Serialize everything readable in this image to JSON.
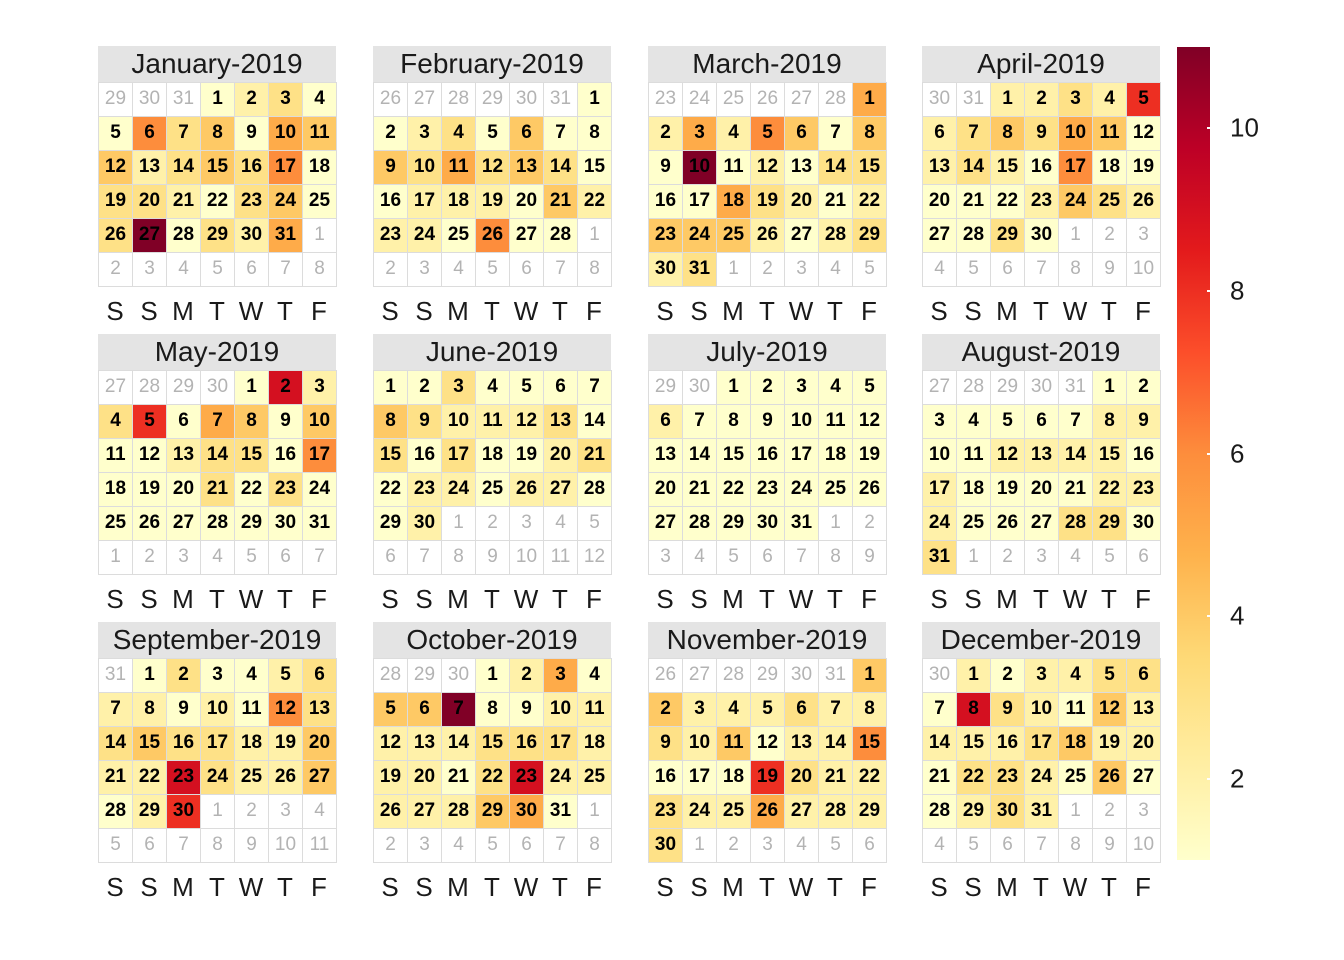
{
  "chart_data": {
    "type": "heatmap",
    "subtype": "calendar",
    "year": 2019,
    "week_start": "Saturday",
    "day_labels": [
      "S",
      "S",
      "M",
      "T",
      "W",
      "T",
      "F"
    ],
    "months": [
      {
        "title": "January-2019",
        "values": [
          1,
          2,
          3,
          1,
          1,
          6,
          3,
          4,
          1,
          5,
          4,
          4,
          2,
          3,
          4,
          3,
          6,
          1,
          3,
          3,
          2,
          1,
          3,
          4,
          1,
          3,
          11,
          1,
          3,
          2,
          5
        ]
      },
      {
        "title": "February-2019",
        "values": [
          1,
          1,
          2,
          3,
          1,
          4,
          1,
          1,
          4,
          3,
          5,
          3,
          4,
          3,
          1,
          1,
          2,
          2,
          2,
          1,
          4,
          2,
          2,
          2,
          1,
          6,
          1,
          1
        ]
      },
      {
        "title": "March-2019",
        "values": [
          5,
          2,
          5,
          2,
          6,
          4,
          1,
          4,
          1,
          11,
          1,
          2,
          1,
          3,
          3,
          1,
          1,
          5,
          3,
          2,
          1,
          2,
          4,
          4,
          4,
          2,
          1,
          2,
          3,
          2,
          3
        ]
      },
      {
        "title": "April-2019",
        "values": [
          2,
          2,
          3,
          2,
          8,
          2,
          3,
          4,
          3,
          5,
          4,
          1,
          2,
          3,
          2,
          1,
          6,
          1,
          1,
          1,
          1,
          1,
          2,
          4,
          3,
          2,
          1,
          1,
          3,
          1
        ]
      },
      {
        "title": "May-2019",
        "values": [
          1,
          9,
          2,
          3,
          8,
          1,
          5,
          4,
          1,
          4,
          1,
          1,
          2,
          3,
          3,
          1,
          6,
          1,
          1,
          1,
          3,
          1,
          3,
          1,
          1,
          1,
          1,
          1,
          1,
          1,
          1
        ]
      },
      {
        "title": "June-2019",
        "values": [
          1,
          1,
          3,
          1,
          1,
          1,
          1,
          4,
          3,
          2,
          2,
          2,
          3,
          1,
          3,
          1,
          3,
          1,
          1,
          2,
          3,
          1,
          2,
          2,
          1,
          2,
          2,
          1,
          1,
          2
        ]
      },
      {
        "title": "July-2019",
        "values": [
          1,
          1,
          1,
          1,
          1,
          2,
          1,
          1,
          1,
          1,
          1,
          1,
          1,
          1,
          1,
          1,
          1,
          1,
          1,
          1,
          1,
          1,
          1,
          1,
          1,
          1,
          1,
          1,
          1,
          1,
          1
        ]
      },
      {
        "title": "August-2019",
        "values": [
          1,
          1,
          1,
          1,
          1,
          1,
          1,
          2,
          2,
          1,
          1,
          2,
          2,
          2,
          2,
          1,
          2,
          1,
          1,
          1,
          1,
          2,
          2,
          2,
          1,
          1,
          1,
          3,
          3,
          1,
          3
        ]
      },
      {
        "title": "September-2019",
        "values": [
          1,
          3,
          1,
          1,
          2,
          3,
          2,
          2,
          1,
          2,
          1,
          6,
          3,
          3,
          4,
          3,
          3,
          2,
          2,
          4,
          2,
          2,
          9,
          3,
          2,
          2,
          4,
          1,
          2,
          8
        ]
      },
      {
        "title": "October-2019",
        "values": [
          1,
          2,
          5,
          1,
          4,
          4,
          11,
          1,
          1,
          2,
          2,
          2,
          2,
          2,
          3,
          3,
          3,
          2,
          2,
          2,
          1,
          3,
          9,
          2,
          2,
          2,
          2,
          2,
          4,
          5,
          1
        ]
      },
      {
        "title": "November-2019",
        "values": [
          4,
          4,
          2,
          2,
          2,
          3,
          2,
          2,
          3,
          2,
          4,
          1,
          2,
          2,
          6,
          1,
          1,
          1,
          8,
          3,
          2,
          2,
          3,
          2,
          2,
          5,
          2,
          2,
          2,
          3
        ]
      },
      {
        "title": "December-2019",
        "values": [
          2,
          1,
          2,
          2,
          3,
          3,
          1,
          9,
          3,
          2,
          1,
          4,
          2,
          2,
          2,
          2,
          3,
          4,
          2,
          2,
          1,
          3,
          3,
          2,
          1,
          4,
          1,
          1,
          2,
          3,
          2
        ]
      }
    ],
    "colorbar": {
      "min": 1,
      "max": 11,
      "ticks": [
        2,
        4,
        6,
        8,
        10
      ],
      "palette": [
        "#ffffcc",
        "#ffeda0",
        "#fed976",
        "#feb24c",
        "#fd8d3c",
        "#fc4e2a",
        "#e31a1c",
        "#bd0026",
        "#800026"
      ]
    },
    "colors": {
      "header_bg": "#e4e4e4",
      "grid_border": "#dcdcdc",
      "out_of_month_text": "#b3b3b3"
    }
  }
}
